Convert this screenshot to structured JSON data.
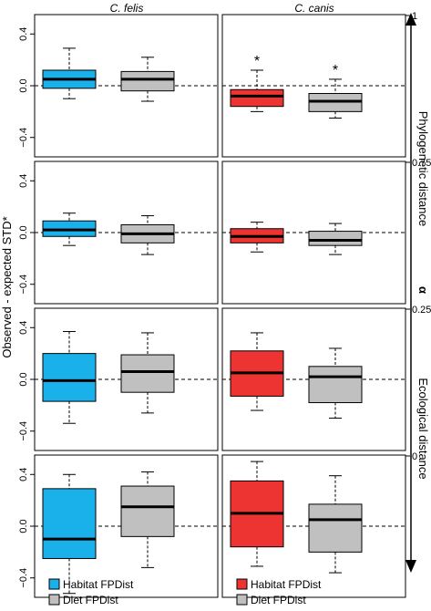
{
  "chart_data": {
    "type": "boxplot",
    "column_titles": [
      "C. felis",
      "C. canis"
    ],
    "ylabel": "Observed - expected STD*",
    "right_axis_label_top": "Phylogenetic distance",
    "right_axis_label_bottom": "Ecological distance",
    "right_axis_label_middle": "α",
    "ylim": [
      -0.55,
      0.55
    ],
    "yticks": [
      -0.4,
      0.0,
      0.4
    ],
    "ytick_labels": [
      "−0.4",
      "0.0",
      "0.4"
    ],
    "legend": [
      {
        "label": "Habitat FPDist",
        "color": "#1ab0ea",
        "column": 0
      },
      {
        "label": "Diet FPDist",
        "color": "#c0c0c0",
        "column": 0
      },
      {
        "label": "Habitat FPDist",
        "color": "#ee3333",
        "column": 1
      },
      {
        "label": "Diet FPDist",
        "color": "#c0c0c0",
        "column": 1
      }
    ],
    "rows": [
      {
        "alpha_label": "1",
        "panels": [
          {
            "boxes": [
              {
                "name": "Habitat FPDist",
                "color": "#1ab0ea",
                "whisker_low": -0.1,
                "q1": -0.02,
                "median": 0.05,
                "q3": 0.12,
                "whisker_high": 0.29
              },
              {
                "name": "Diet FPDist",
                "color": "#c0c0c0",
                "whisker_low": -0.12,
                "q1": -0.04,
                "median": 0.05,
                "q3": 0.11,
                "whisker_high": 0.22
              }
            ]
          },
          {
            "boxes": [
              {
                "name": "Habitat FPDist",
                "color": "#ee3333",
                "whisker_low": -0.2,
                "q1": -0.16,
                "median": -0.08,
                "q3": -0.03,
                "whisker_high": 0.12,
                "significant": true
              },
              {
                "name": "Diet FPDist",
                "color": "#c0c0c0",
                "whisker_low": -0.25,
                "q1": -0.2,
                "median": -0.12,
                "q3": -0.06,
                "whisker_high": 0.05,
                "significant": true
              }
            ]
          }
        ]
      },
      {
        "alpha_label": "0.75",
        "panels": [
          {
            "boxes": [
              {
                "name": "Habitat FPDist",
                "color": "#1ab0ea",
                "whisker_low": -0.1,
                "q1": -0.03,
                "median": 0.02,
                "q3": 0.09,
                "whisker_high": 0.15
              },
              {
                "name": "Diet FPDist",
                "color": "#c0c0c0",
                "whisker_low": -0.17,
                "q1": -0.08,
                "median": -0.01,
                "q3": 0.06,
                "whisker_high": 0.13
              }
            ]
          },
          {
            "boxes": [
              {
                "name": "Habitat FPDist",
                "color": "#ee3333",
                "whisker_low": -0.15,
                "q1": -0.08,
                "median": -0.03,
                "q3": 0.03,
                "whisker_high": 0.08
              },
              {
                "name": "Diet FPDist",
                "color": "#c0c0c0",
                "whisker_low": -0.17,
                "q1": -0.1,
                "median": -0.06,
                "q3": 0.01,
                "whisker_high": 0.07
              }
            ]
          }
        ]
      },
      {
        "alpha_label": "0.25",
        "panels": [
          {
            "boxes": [
              {
                "name": "Habitat FPDist",
                "color": "#1ab0ea",
                "whisker_low": -0.34,
                "q1": -0.17,
                "median": -0.01,
                "q3": 0.2,
                "whisker_high": 0.37
              },
              {
                "name": "Diet FPDist",
                "color": "#c0c0c0",
                "whisker_low": -0.26,
                "q1": -0.1,
                "median": 0.06,
                "q3": 0.19,
                "whisker_high": 0.36
              }
            ]
          },
          {
            "boxes": [
              {
                "name": "Habitat FPDist",
                "color": "#ee3333",
                "whisker_low": -0.24,
                "q1": -0.13,
                "median": 0.05,
                "q3": 0.22,
                "whisker_high": 0.36
              },
              {
                "name": "Diet FPDist",
                "color": "#c0c0c0",
                "whisker_low": -0.3,
                "q1": -0.18,
                "median": 0.02,
                "q3": 0.1,
                "whisker_high": 0.24
              }
            ]
          }
        ]
      },
      {
        "alpha_label": "0",
        "panels": [
          {
            "boxes": [
              {
                "name": "Habitat FPDist",
                "color": "#1ab0ea",
                "whisker_low": -0.52,
                "q1": -0.25,
                "median": -0.1,
                "q3": 0.29,
                "whisker_high": 0.4
              },
              {
                "name": "Diet FPDist",
                "color": "#c0c0c0",
                "whisker_low": -0.32,
                "q1": -0.08,
                "median": 0.15,
                "q3": 0.31,
                "whisker_high": 0.42
              }
            ]
          },
          {
            "boxes": [
              {
                "name": "Habitat FPDist",
                "color": "#ee3333",
                "whisker_low": -0.31,
                "q1": -0.16,
                "median": 0.1,
                "q3": 0.35,
                "whisker_high": 0.5
              },
              {
                "name": "Diet FPDist",
                "color": "#c0c0c0",
                "whisker_low": -0.36,
                "q1": -0.2,
                "median": 0.05,
                "q3": 0.17,
                "whisker_high": 0.39
              }
            ]
          }
        ]
      }
    ]
  }
}
